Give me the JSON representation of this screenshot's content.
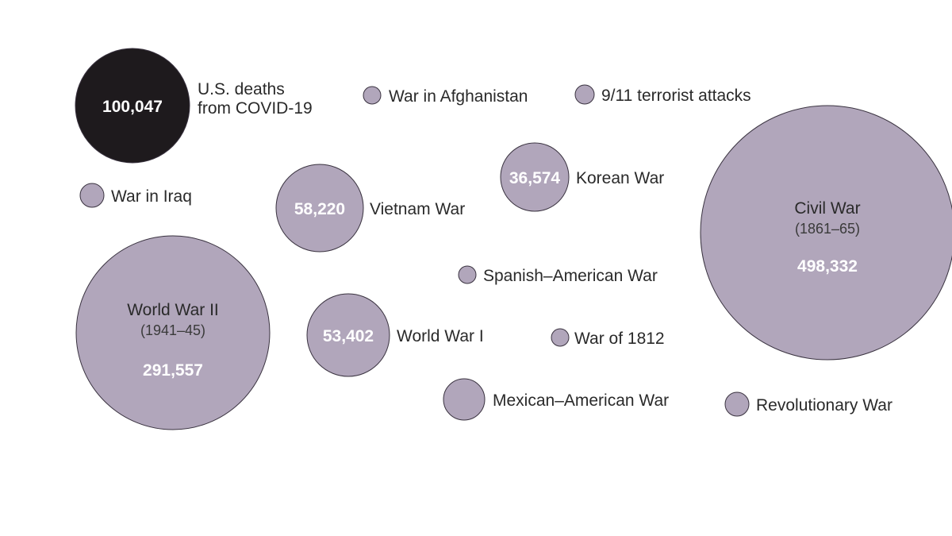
{
  "chart_data": {
    "type": "bubble",
    "title": "",
    "colors": {
      "highlight": "#1e1a1d",
      "default": "#b1a6bb",
      "stroke": "#3a3340"
    },
    "bubbles": [
      {
        "key": "covid",
        "label": "U.S. deaths from COVID-19",
        "label_lines": [
          "U.S. deaths",
          "from COVID-19"
        ],
        "value": 100047,
        "value_text": "100,047",
        "highlight": true
      },
      {
        "key": "afghanistan",
        "label": "War in Afghanistan",
        "value": null
      },
      {
        "key": "sept11",
        "label": "9/11 terrorist attacks",
        "value": null
      },
      {
        "key": "iraq",
        "label": "War in Iraq",
        "value": null
      },
      {
        "key": "vietnam",
        "label": "Vietnam War",
        "value": 58220,
        "value_text": "58,220"
      },
      {
        "key": "korea",
        "label": "Korean War",
        "value": 36574,
        "value_text": "36,574"
      },
      {
        "key": "civil",
        "label": "Civil War",
        "years": "(1861–65)",
        "value": 498332,
        "value_text": "498,332"
      },
      {
        "key": "spanish",
        "label": "Spanish–American War",
        "value": null
      },
      {
        "key": "ww2",
        "label": "World War II",
        "years": "(1941–45)",
        "value": 291557,
        "value_text": "291,557"
      },
      {
        "key": "ww1",
        "label": "World War I",
        "value": 53402,
        "value_text": "53,402"
      },
      {
        "key": "w1812",
        "label": "War of 1812",
        "value": null
      },
      {
        "key": "mexican",
        "label": "Mexican–American War",
        "value": null
      },
      {
        "key": "revolutionary",
        "label": "Revolutionary War",
        "value": null
      }
    ]
  }
}
